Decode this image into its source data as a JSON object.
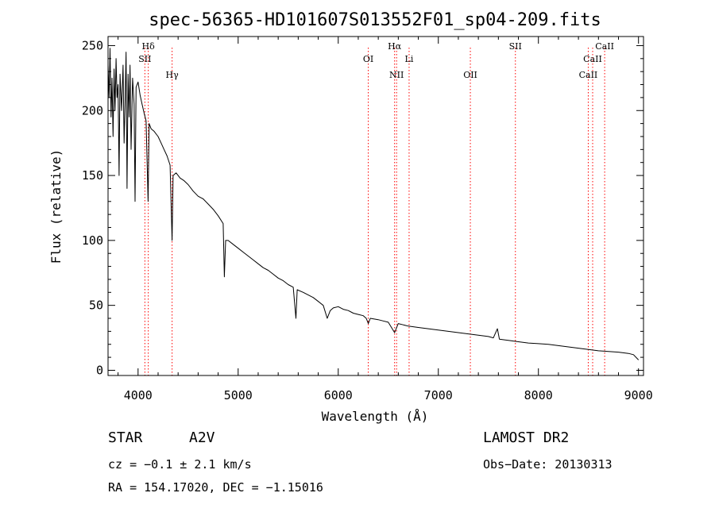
{
  "chart_data": {
    "type": "line",
    "title": "spec-56365-HD101607S013552F01_sp04-209.fits",
    "xlabel": "Wavelength (Å)",
    "ylabel": "Flux (relative)",
    "xlim": [
      3700,
      9050
    ],
    "ylim": [
      -4,
      257
    ],
    "xticks": [
      4000,
      5000,
      6000,
      7000,
      8000,
      9000
    ],
    "yticks": [
      0,
      50,
      100,
      150,
      200,
      250
    ],
    "grid": false,
    "series": [
      {
        "points": [
          [
            3700,
            235
          ],
          [
            3710,
            210
          ],
          [
            3720,
            248
          ],
          [
            3730,
            195
          ],
          [
            3740,
            225
          ],
          [
            3750,
            180
          ],
          [
            3760,
            232
          ],
          [
            3770,
            200
          ],
          [
            3780,
            240
          ],
          [
            3790,
            210
          ],
          [
            3800,
            220
          ],
          [
            3810,
            150
          ],
          [
            3820,
            228
          ],
          [
            3835,
            200
          ],
          [
            3850,
            235
          ],
          [
            3860,
            175
          ],
          [
            3870,
            205
          ],
          [
            3880,
            245
          ],
          [
            3890,
            140
          ],
          [
            3900,
            228
          ],
          [
            3910,
            195
          ],
          [
            3920,
            235
          ],
          [
            3930,
            170
          ],
          [
            3945,
            225
          ],
          [
            3960,
            205
          ],
          [
            3970,
            130
          ],
          [
            3980,
            218
          ],
          [
            4000,
            222
          ],
          [
            4020,
            212
          ],
          [
            4040,
            205
          ],
          [
            4060,
            198
          ],
          [
            4080,
            192
          ],
          [
            4100,
            130
          ],
          [
            4110,
            190
          ],
          [
            4130,
            186
          ],
          [
            4160,
            184
          ],
          [
            4200,
            180
          ],
          [
            4230,
            175
          ],
          [
            4260,
            170
          ],
          [
            4290,
            165
          ],
          [
            4320,
            158
          ],
          [
            4340,
            100
          ],
          [
            4350,
            150
          ],
          [
            4380,
            152
          ],
          [
            4420,
            148
          ],
          [
            4460,
            146
          ],
          [
            4500,
            143
          ],
          [
            4550,
            138
          ],
          [
            4600,
            134
          ],
          [
            4650,
            132
          ],
          [
            4700,
            128
          ],
          [
            4750,
            124
          ],
          [
            4800,
            119
          ],
          [
            4850,
            113
          ],
          [
            4862,
            72
          ],
          [
            4875,
            100
          ],
          [
            4900,
            100
          ],
          [
            4950,
            97
          ],
          [
            5000,
            94
          ],
          [
            5050,
            91
          ],
          [
            5100,
            88
          ],
          [
            5150,
            85
          ],
          [
            5200,
            82
          ],
          [
            5250,
            79
          ],
          [
            5300,
            77
          ],
          [
            5350,
            74
          ],
          [
            5400,
            71
          ],
          [
            5450,
            69
          ],
          [
            5500,
            66
          ],
          [
            5550,
            64
          ],
          [
            5577,
            40
          ],
          [
            5590,
            62
          ],
          [
            5650,
            60
          ],
          [
            5700,
            58
          ],
          [
            5750,
            56
          ],
          [
            5800,
            53
          ],
          [
            5850,
            50
          ],
          [
            5890,
            40
          ],
          [
            5920,
            46
          ],
          [
            5950,
            48
          ],
          [
            6000,
            49
          ],
          [
            6050,
            47
          ],
          [
            6100,
            46
          ],
          [
            6150,
            44
          ],
          [
            6200,
            43
          ],
          [
            6250,
            42
          ],
          [
            6280,
            40
          ],
          [
            6300,
            36
          ],
          [
            6320,
            40
          ],
          [
            6400,
            39
          ],
          [
            6450,
            38
          ],
          [
            6500,
            37
          ],
          [
            6563,
            29
          ],
          [
            6600,
            36
          ],
          [
            6650,
            35
          ],
          [
            6700,
            34
          ],
          [
            6800,
            33
          ],
          [
            6900,
            32
          ],
          [
            7000,
            31
          ],
          [
            7100,
            30
          ],
          [
            7200,
            29
          ],
          [
            7300,
            28
          ],
          [
            7400,
            27
          ],
          [
            7500,
            26
          ],
          [
            7550,
            25
          ],
          [
            7590,
            32
          ],
          [
            7610,
            24
          ],
          [
            7700,
            23
          ],
          [
            7800,
            22
          ],
          [
            7900,
            21
          ],
          [
            8000,
            20.5
          ],
          [
            8100,
            20
          ],
          [
            8200,
            19
          ],
          [
            8300,
            18
          ],
          [
            8400,
            17
          ],
          [
            8500,
            16
          ],
          [
            8600,
            15
          ],
          [
            8700,
            14.5
          ],
          [
            8800,
            14
          ],
          [
            8900,
            13
          ],
          [
            8950,
            12
          ],
          [
            9000,
            8
          ]
        ]
      }
    ],
    "spectral_lines": [
      {
        "label": "Hδ",
        "x": 4102,
        "row": 0
      },
      {
        "label": "SII",
        "x": 4068,
        "row": 1
      },
      {
        "label": "Hγ",
        "x": 4340,
        "row": 2
      },
      {
        "label": "OI",
        "x": 6300,
        "row": 1
      },
      {
        "label": "Hα",
        "x": 6563,
        "row": 0
      },
      {
        "label": "NII",
        "x": 6583,
        "row": 2
      },
      {
        "label": "Li",
        "x": 6708,
        "row": 1
      },
      {
        "label": "OII",
        "x": 7320,
        "row": 2
      },
      {
        "label": "SII",
        "x": 7770,
        "row": 0
      },
      {
        "label": "CaII",
        "x": 8498,
        "row": 2
      },
      {
        "label": "CaII",
        "x": 8542,
        "row": 1
      },
      {
        "label": "CaII",
        "x": 8662,
        "row": 0
      }
    ],
    "colors": {
      "spectrum": "#000000",
      "line_marker": "#ff0000",
      "axis": "#000000"
    }
  },
  "info": {
    "object_type": "STAR",
    "subclass": "A2V",
    "survey": "LAMOST DR2",
    "cz": "cz = −0.1 ± 2.1 km/s",
    "obs_date": "Obs−Date: 20130313",
    "coords": "RA = 154.17020, DEC =  −1.15016"
  }
}
